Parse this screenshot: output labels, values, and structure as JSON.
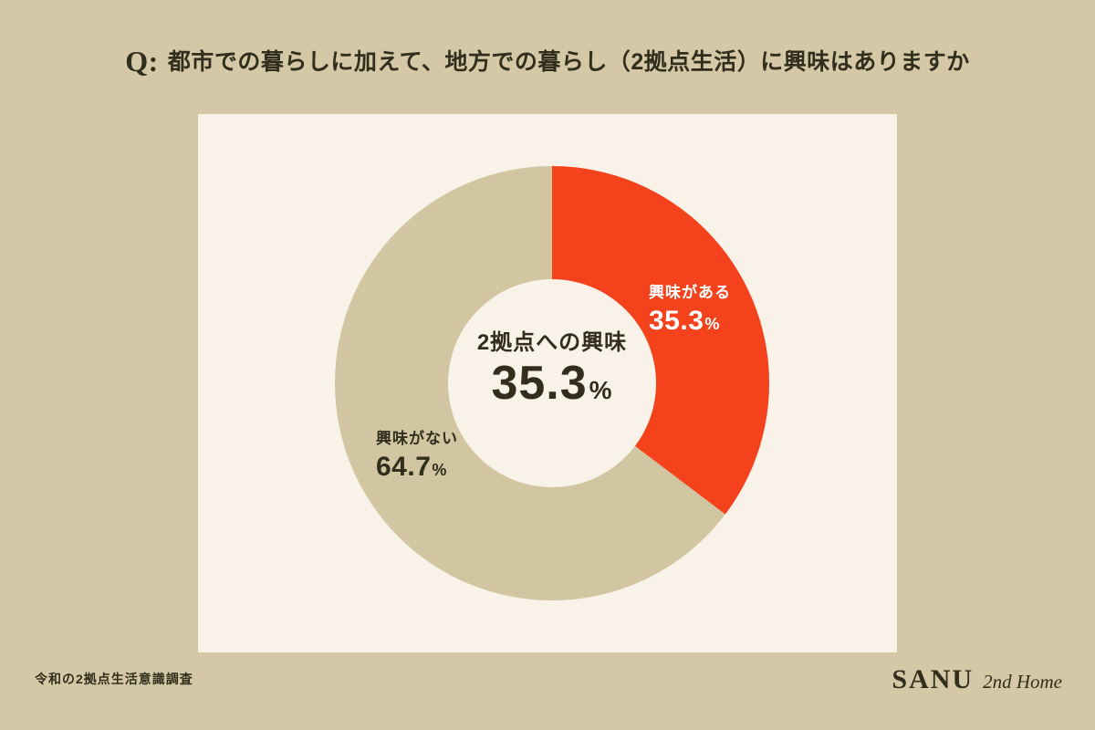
{
  "page": {
    "title_prefix": "Q:",
    "title": "都市での暮らしに加えて、地方での暮らし（2拠点生活）に興味はありますか",
    "footer_note": "令和の2拠点生活意識調査",
    "brand_name": "SANU",
    "brand_suffix": "2nd Home"
  },
  "colors": {
    "background": "#d5c8a6",
    "card": "#f9f2e8",
    "accent": "#f4421d",
    "muted_slice": "#d2c5a2",
    "text_dark": "#312e1d",
    "text_light": "#ffffff"
  },
  "chart_data": {
    "type": "pie",
    "subtype": "donut",
    "title": "2拠点への興味",
    "center_label": "2拠点への興味",
    "center_value": "35.3",
    "unit": "%",
    "start_angle_deg": 0,
    "direction": "clockwise",
    "legend_position": "on-slices",
    "slices": [
      {
        "label": "興味がある",
        "value": 35.3,
        "color": "#f4421d",
        "text_color": "#ffffff"
      },
      {
        "label": "興味がない",
        "value": 64.7,
        "color": "#d2c5a2",
        "text_color": "#312e1d"
      }
    ]
  }
}
